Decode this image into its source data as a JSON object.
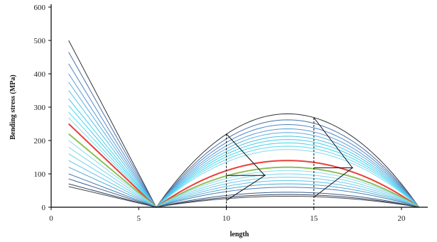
{
  "chart_data": {
    "type": "line",
    "title": "",
    "xlabel": "length",
    "ylabel": "Bending stress (MPa)",
    "xlim": [
      0,
      21.5
    ],
    "ylim": [
      0,
      600
    ],
    "xticks": [
      0,
      5,
      10,
      15,
      20
    ],
    "yticks": [
      0,
      100,
      200,
      300,
      400,
      500,
      600
    ],
    "grid": false,
    "legend": "none",
    "notes": "Family of bending-stress curves: each series starts at x=1, decreases linearly to 0 at x=6, then follows a parabolic arch from x=6 to x=21 peaking near x=13.5. Dashed vertical markers at x=10 and x=15 with zig-zag brackets spanning the curve family.",
    "family": {
      "left_start_x": 1,
      "zero_x": 6,
      "arch_end_x": 21,
      "arch_peak_x": 13.5,
      "series": [
        {
          "left": 500,
          "arch_peak": 280,
          "color": "#333333"
        },
        {
          "left": 465,
          "arch_peak": 262,
          "color": "#4a6fa5"
        },
        {
          "left": 430,
          "arch_peak": 248,
          "color": "#4f86c6"
        },
        {
          "left": 400,
          "arch_peak": 235,
          "color": "#5a9bd5"
        },
        {
          "left": 375,
          "arch_peak": 224,
          "color": "#5eaee0"
        },
        {
          "left": 350,
          "arch_peak": 213,
          "color": "#4fc3e6"
        },
        {
          "left": 325,
          "arch_peak": 203,
          "color": "#47cdea"
        },
        {
          "left": 305,
          "arch_peak": 193,
          "color": "#3fd3ec"
        },
        {
          "left": 285,
          "arch_peak": 183,
          "color": "#5fd8ee"
        },
        {
          "left": 268,
          "arch_peak": 173,
          "color": "#7ddcf0"
        },
        {
          "left": 250,
          "arch_peak": 140,
          "color": "#e8403c"
        },
        {
          "left": 220,
          "arch_peak": 120,
          "color": "#8fbf5a"
        },
        {
          "left": 200,
          "arch_peak": 110,
          "color": "#8ad8ee"
        },
        {
          "left": 180,
          "arch_peak": 100,
          "color": "#7fd3ec"
        },
        {
          "left": 160,
          "arch_peak": 90,
          "color": "#6fcdea"
        },
        {
          "left": 140,
          "arch_peak": 80,
          "color": "#5fc4e6"
        },
        {
          "left": 120,
          "arch_peak": 70,
          "color": "#54a8d4"
        },
        {
          "left": 100,
          "arch_peak": 60,
          "color": "#4a7fb5"
        },
        {
          "left": 85,
          "arch_peak": 45,
          "color": "#3d5f8a"
        },
        {
          "left": 70,
          "arch_peak": 38,
          "color": "#2f4466"
        },
        {
          "left": 62,
          "arch_peak": 33,
          "color": "#444444"
        }
      ]
    },
    "markers": [
      {
        "x": 10,
        "y_top": 220,
        "y_bottom": 20,
        "bracket_tip_x": 12.2,
        "bracket_tip_y": 95
      },
      {
        "x": 15,
        "y_top": 268,
        "y_bottom": 30,
        "bracket_tip_x": 17.2,
        "bracket_tip_y": 118
      }
    ]
  }
}
